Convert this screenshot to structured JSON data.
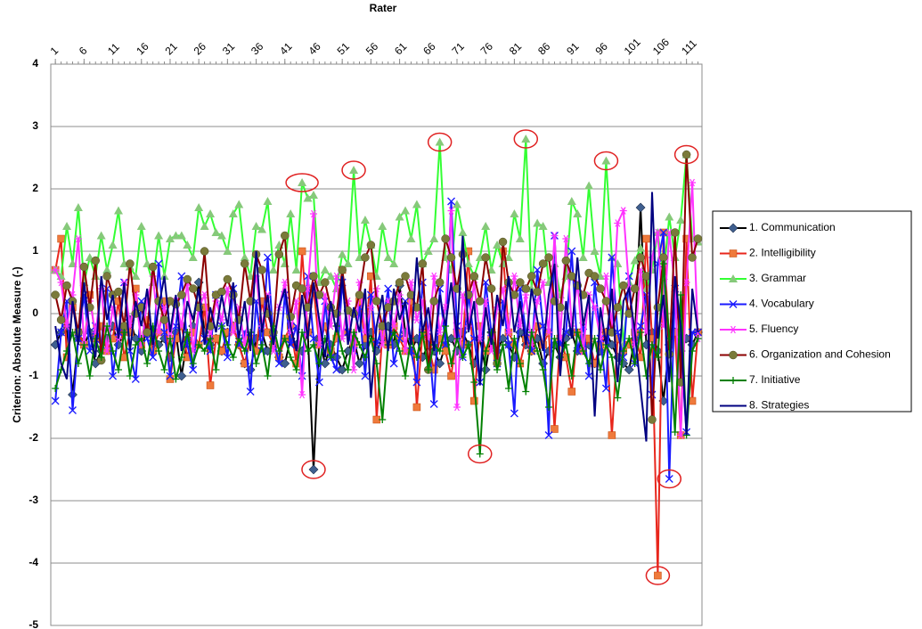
{
  "chart_data": {
    "type": "line",
    "x_label": "Rater",
    "y_label": "Criterion: Absolute Measure (-)",
    "x": [
      1,
      2,
      3,
      4,
      5,
      6,
      7,
      8,
      9,
      10,
      11,
      12,
      13,
      14,
      15,
      16,
      17,
      18,
      19,
      20,
      21,
      22,
      23,
      24,
      25,
      26,
      27,
      28,
      29,
      30,
      31,
      32,
      33,
      34,
      35,
      36,
      37,
      38,
      39,
      40,
      41,
      42,
      43,
      44,
      45,
      46,
      47,
      48,
      49,
      50,
      51,
      52,
      53,
      54,
      55,
      56,
      57,
      58,
      59,
      60,
      61,
      62,
      63,
      64,
      65,
      66,
      67,
      68,
      69,
      70,
      71,
      72,
      73,
      74,
      75,
      76,
      77,
      78,
      79,
      80,
      81,
      82,
      83,
      84,
      85,
      86,
      87,
      88,
      89,
      90,
      91,
      92,
      93,
      94,
      95,
      96,
      97,
      98,
      99,
      100,
      101,
      102,
      103,
      104,
      105,
      106,
      107,
      108,
      109,
      110,
      111,
      112,
      113
    ],
    "xlim": [
      0.2,
      113.7
    ],
    "xticks": [
      1,
      6,
      11,
      16,
      21,
      26,
      31,
      36,
      41,
      46,
      51,
      56,
      61,
      66,
      71,
      76,
      81,
      86,
      91,
      96,
      101,
      106,
      111
    ],
    "ylim": [
      -5,
      4
    ],
    "yticks": [
      -5,
      -4,
      -3,
      -2,
      -1,
      0,
      1,
      2,
      3,
      4
    ],
    "grid": true,
    "legend": "right",
    "series": [
      {
        "name": "1. Communication",
        "color": "#000000",
        "marker": "diamond",
        "marker_color": "#3f5f8f",
        "values": [
          -0.5,
          -0.3,
          -0.2,
          -1.3,
          -0.4,
          -0.5,
          -0.3,
          -0.8,
          -0.6,
          -0.4,
          -0.2,
          -0.5,
          -0.3,
          -0.1,
          -0.4,
          -0.6,
          -0.2,
          -0.3,
          -0.5,
          -0.4,
          -0.7,
          -0.3,
          -1.0,
          -0.4,
          -0.2,
          0.5,
          -0.3,
          -0.5,
          -0.4,
          -0.6,
          -0.3,
          -0.2,
          -0.5,
          -0.8,
          -0.9,
          -0.4,
          -0.3,
          -0.6,
          -0.5,
          -0.7,
          -0.8,
          -0.4,
          -0.5,
          -0.6,
          -0.3,
          -2.5,
          -0.4,
          -0.8,
          -0.5,
          -0.7,
          -0.9,
          -0.6,
          -0.4,
          -0.8,
          -0.5,
          -0.3,
          -0.6,
          -0.4,
          -0.2,
          -0.5,
          0.45,
          -0.3,
          -0.6,
          -0.4,
          -0.7,
          -0.5,
          -0.6,
          -0.8,
          -0.5,
          -0.4,
          -0.6,
          -0.3,
          -0.5,
          -0.8,
          -0.4,
          -0.9,
          -0.3,
          -0.6,
          -0.4,
          -0.5,
          -0.7,
          -0.3,
          -0.5,
          -0.6,
          -0.4,
          -0.8,
          -0.6,
          -0.5,
          -0.7,
          -0.4,
          -0.3,
          -0.6,
          -0.4,
          -0.5,
          -0.8,
          -0.6,
          -0.3,
          -0.5,
          -0.7,
          -0.8,
          -0.9,
          -0.4,
          1.7,
          -0.5,
          -0.3,
          -0.6,
          -1.4,
          -0.5,
          -0.3,
          -0.6,
          -0.4,
          -0.5,
          -0.3
        ]
      },
      {
        "name": "2. Intelligibility",
        "color": "#e8261c",
        "marker": "square",
        "marker_color": "#ef7a3c",
        "values": [
          0.7,
          1.2,
          -0.7,
          0.1,
          -0.3,
          -0.5,
          0.3,
          -0.4,
          -0.2,
          -0.6,
          -0.4,
          0.2,
          -0.7,
          -0.3,
          0.4,
          -0.5,
          -0.1,
          -0.6,
          -0.3,
          0.2,
          -1.05,
          -0.4,
          -0.2,
          -0.7,
          -0.3,
          -0.5,
          0.1,
          -1.15,
          -0.4,
          -0.6,
          -0.3,
          -0.2,
          -0.5,
          -0.8,
          -0.4,
          -0.6,
          0.2,
          -0.3,
          -0.5,
          -0.7,
          -0.4,
          -0.2,
          -0.8,
          1.0,
          -0.3,
          0.4,
          -0.5,
          -0.2,
          -0.6,
          -0.4,
          0.7,
          -0.3,
          -0.5,
          0.2,
          -0.4,
          0.6,
          -1.7,
          -0.3,
          -0.5,
          -0.2,
          -0.4,
          -0.6,
          0.2,
          -1.5,
          -0.3,
          -0.5,
          -0.9,
          -0.4,
          -0.6,
          -1.0,
          -0.3,
          -0.5,
          1.0,
          -1.4,
          -0.2,
          -0.6,
          -0.4,
          -0.7,
          1.0,
          -0.3,
          -0.5,
          -0.8,
          -0.4,
          -0.6,
          -0.2,
          -0.5,
          -0.3,
          -1.85,
          -0.4,
          -0.7,
          -1.25,
          -0.3,
          -0.6,
          -0.4,
          -0.8,
          -0.5,
          -0.3,
          -1.95,
          -0.4,
          -0.6,
          -0.5,
          -0.3,
          -0.7,
          1.2,
          -0.4,
          -4.2,
          1.3,
          -0.5,
          -0.3,
          -1.95,
          1.2,
          -1.4,
          -0.3
        ]
      },
      {
        "name": "3. Grammar",
        "color": "#33ff33",
        "marker": "triangle",
        "marker_color": "#86c97a",
        "values": [
          0.7,
          0.6,
          1.4,
          0.8,
          1.7,
          0.5,
          0.9,
          0.6,
          1.25,
          0.7,
          1.1,
          1.65,
          0.8,
          0.75,
          0.6,
          1.4,
          0.8,
          0.5,
          1.25,
          0.6,
          1.2,
          1.25,
          1.25,
          1.1,
          0.9,
          1.7,
          1.4,
          1.6,
          1.3,
          1.25,
          1.0,
          1.6,
          1.75,
          0.9,
          0.6,
          1.4,
          1.35,
          1.8,
          0.7,
          1.1,
          0.8,
          1.6,
          0.7,
          2.1,
          1.85,
          1.9,
          0.5,
          0.7,
          0.6,
          0.4,
          0.95,
          0.8,
          2.3,
          0.9,
          1.5,
          1.1,
          0.6,
          1.4,
          0.9,
          0.8,
          1.55,
          1.65,
          1.2,
          1.75,
          0.8,
          1.0,
          1.2,
          2.75,
          0.9,
          0.7,
          1.75,
          1.3,
          0.8,
          0.6,
          0.9,
          1.4,
          0.7,
          1.1,
          0.8,
          0.9,
          1.6,
          1.2,
          2.8,
          0.4,
          1.45,
          1.4,
          0.5,
          0.8,
          0.3,
          0.6,
          1.8,
          1.6,
          0.9,
          2.05,
          1.0,
          0.6,
          2.45,
          0.9,
          0.8,
          -0.5,
          0.5,
          0.85,
          1.05,
          0.4,
          0.7,
          1.3,
          0.6,
          1.55,
          0.9,
          1.5,
          2.55,
          1.2,
          1.15
        ]
      },
      {
        "name": "4. Vocabulary",
        "color": "#1a1aff",
        "marker": "x",
        "marker_color": "#1a1aff",
        "values": [
          -1.4,
          -0.3,
          0.2,
          -1.55,
          -0.4,
          0.3,
          -0.6,
          -0.2,
          -0.5,
          0.4,
          -1.0,
          -0.3,
          0.5,
          -0.6,
          -1.05,
          0.2,
          -0.4,
          -0.7,
          0.8,
          -0.3,
          -1.0,
          -0.2,
          0.6,
          -0.5,
          -0.9,
          0.1,
          -0.4,
          -0.6,
          0.3,
          -0.2,
          -0.7,
          0.4,
          -0.5,
          -0.3,
          -1.25,
          0.2,
          -0.6,
          0.9,
          -0.4,
          -0.8,
          0.3,
          -0.5,
          -0.2,
          -1.0,
          0.6,
          -0.4,
          -1.1,
          0.2,
          -0.7,
          -0.9,
          0.5,
          -0.3,
          -0.6,
          0.1,
          -1.0,
          0.3,
          -0.5,
          -0.2,
          0.4,
          -0.8,
          -0.4,
          0.2,
          -0.6,
          -1.1,
          0.5,
          -0.3,
          -1.45,
          0.4,
          -0.5,
          1.8,
          -0.2,
          -0.7,
          0.3,
          -0.4,
          -1.1,
          0.5,
          -0.3,
          -0.8,
          0.2,
          -0.5,
          -1.6,
          0.4,
          -0.3,
          -0.6,
          0.7,
          -0.2,
          -1.95,
          1.25,
          -0.5,
          -0.3,
          1.0,
          -0.6,
          -0.2,
          -1.0,
          0.5,
          -0.4,
          -1.2,
          0.9,
          -0.3,
          -0.7,
          0.6,
          -0.8,
          -0.2,
          0.3,
          -1.3,
          0.8,
          1.3,
          -2.65,
          0.4,
          -0.5,
          -1.9,
          -0.3,
          -0.3
        ]
      },
      {
        "name": "5. Fluency",
        "color": "#ff33ff",
        "marker": "asterisk",
        "marker_color": "#ff33ff",
        "values": [
          0.7,
          0.5,
          -0.2,
          0.3,
          1.2,
          -0.5,
          0.2,
          -0.3,
          0.4,
          -0.6,
          0.1,
          -0.4,
          0.5,
          -0.2,
          0.3,
          -0.5,
          0.2,
          0.6,
          -0.3,
          0.1,
          -0.4,
          0.2,
          -0.2,
          0.5,
          -0.6,
          0.1,
          0.3,
          -0.4,
          0.2,
          -0.1,
          0.4,
          -0.3,
          0.1,
          -0.5,
          0.2,
          0.6,
          -0.2,
          0.3,
          -0.6,
          0.1,
          0.5,
          -0.3,
          0.2,
          -1.3,
          0.4,
          1.6,
          -0.5,
          0.3,
          -0.2,
          0.6,
          -0.4,
          0.2,
          -0.9,
          0.5,
          -0.3,
          0.1,
          0.4,
          -0.5,
          0.2,
          -0.2,
          0.3,
          -0.6,
          0.5,
          -0.1,
          0.2,
          -0.4,
          0.6,
          -0.3,
          0.1,
          1.65,
          -1.5,
          0.3,
          -0.2,
          0.5,
          -0.4,
          0.2,
          -0.6,
          0.1,
          0.4,
          -0.3,
          0.6,
          -0.2,
          0.3,
          -0.5,
          0.2,
          0.5,
          -0.3,
          1.25,
          -0.4,
          1.2,
          -0.2,
          0.5,
          -0.6,
          0.3,
          0.1,
          -0.4,
          0.6,
          -0.2,
          1.45,
          1.65,
          0.4,
          -0.5,
          0.7,
          -0.3,
          0.9,
          1.3,
          -0.2,
          1.3,
          0.4,
          -1.95,
          0.5,
          2.1,
          -0.4
        ]
      },
      {
        "name": "6. Organization and Cohesion",
        "color": "#8b0000",
        "marker": "circle",
        "marker_color": "#7a7a3a",
        "values": [
          0.3,
          -0.1,
          0.45,
          0.2,
          -0.3,
          0.75,
          0.1,
          0.85,
          -0.75,
          0.6,
          0.3,
          0.35,
          -0.2,
          0.8,
          0.0,
          0.1,
          -0.3,
          0.75,
          0.2,
          -0.1,
          0.2,
          0.15,
          0.3,
          0.55,
          0.4,
          0.1,
          1.0,
          -0.2,
          0.3,
          0.35,
          0.55,
          0.3,
          -0.1,
          0.8,
          0.2,
          0.95,
          0.7,
          0.0,
          -0.3,
          0.95,
          1.25,
          -0.05,
          0.45,
          0.4,
          0.1,
          0.6,
          0.3,
          0.5,
          0.1,
          0.0,
          0.7,
          0.05,
          0.0,
          0.3,
          0.9,
          1.1,
          0.2,
          -0.2,
          0.1,
          0.2,
          0.5,
          0.6,
          0.3,
          0.1,
          0.8,
          -0.9,
          0.2,
          0.5,
          1.2,
          0.9,
          0.4,
          0.95,
          0.3,
          0.6,
          0.2,
          0.9,
          0.4,
          -0.8,
          1.15,
          0.5,
          0.3,
          0.5,
          0.4,
          0.6,
          0.35,
          0.8,
          0.9,
          0.2,
          0.1,
          0.85,
          0.6,
          0.45,
          0.3,
          0.65,
          0.6,
          0.4,
          0.2,
          -0.3,
          0.1,
          0.45,
          0.0,
          0.4,
          0.9,
          0.6,
          -1.7,
          0.1,
          0.9,
          -0.65,
          1.3,
          -1.1,
          2.55,
          0.9,
          1.2
        ]
      },
      {
        "name": "7. Initiative",
        "color": "#008000",
        "marker": "plus",
        "marker_color": "#008000",
        "values": [
          -1.2,
          -0.9,
          -0.6,
          -0.3,
          -0.8,
          -0.5,
          -1.0,
          -0.4,
          -0.7,
          -0.2,
          -0.6,
          -0.9,
          -0.3,
          -1.0,
          -0.5,
          -0.4,
          -0.8,
          -0.2,
          -0.6,
          -0.9,
          -0.4,
          -1.05,
          -0.7,
          -0.3,
          -0.8,
          -0.5,
          -0.6,
          -0.4,
          -0.9,
          -0.2,
          -0.5,
          -0.7,
          -0.4,
          -0.6,
          -0.3,
          -0.8,
          -0.5,
          -1.0,
          -0.2,
          -0.6,
          -0.4,
          -0.7,
          -0.9,
          -0.3,
          -0.6,
          -0.5,
          -0.8,
          -0.4,
          -0.7,
          -0.2,
          -0.6,
          -0.9,
          -0.3,
          -0.5,
          -0.7,
          -0.4,
          -0.8,
          -1.7,
          -0.5,
          -0.3,
          -0.6,
          -1.0,
          -0.4,
          -0.7,
          -0.3,
          -0.9,
          -0.5,
          -0.6,
          -0.2,
          -0.8,
          -0.4,
          -0.7,
          -0.5,
          -1.1,
          -2.25,
          -0.6,
          -0.3,
          -0.9,
          -0.5,
          -1.2,
          -0.4,
          -0.8,
          -1.25,
          -0.3,
          -0.6,
          -0.9,
          -1.5,
          -0.4,
          -0.7,
          -0.5,
          -1.0,
          -0.3,
          -0.6,
          -0.8,
          -0.4,
          -0.9,
          -0.5,
          -0.7,
          -1.35,
          -0.6,
          -0.4,
          -0.8,
          -0.3,
          -1.0,
          -0.5,
          -0.7,
          0.8,
          -0.4,
          -1.9,
          0.3,
          -1.95,
          -0.6,
          -0.4
        ]
      },
      {
        "name": "8. Strategies",
        "color": "#000080",
        "marker": "none",
        "marker_color": "#000080",
        "values": [
          -0.2,
          -0.8,
          -1.05,
          0.2,
          -0.5,
          0.5,
          -0.3,
          -0.7,
          0.6,
          -0.1,
          0.3,
          -0.4,
          0.5,
          -0.6,
          0.2,
          -0.2,
          0.4,
          -0.5,
          0.1,
          0.6,
          -0.3,
          0.3,
          -0.6,
          0.2,
          -0.1,
          0.4,
          -0.5,
          0.1,
          -0.3,
          0.3,
          -0.2,
          0.5,
          -0.4,
          0.2,
          -0.6,
          1.0,
          -0.3,
          0.3,
          -0.5,
          0.1,
          0.4,
          -0.2,
          -0.6,
          0.3,
          -0.4,
          0.5,
          -0.1,
          -0.7,
          0.2,
          -0.3,
          0.6,
          -0.5,
          0.1,
          -0.3,
          0.4,
          -1.35,
          -0.2,
          0.3,
          -0.6,
          0.4,
          -0.1,
          0.2,
          -0.5,
          0.9,
          -0.3,
          0.1,
          -0.6,
          0.3,
          -0.2,
          0.5,
          -0.4,
          1.25,
          -0.3,
          0.2,
          -1.15,
          0.1,
          -0.5,
          0.3,
          -0.2,
          0.6,
          -0.3,
          0.2,
          -0.5,
          0.4,
          -0.1,
          -0.6,
          0.3,
          0.8,
          -1.0,
          0.2,
          -0.4,
          0.9,
          -0.2,
          0.3,
          -1.65,
          0.1,
          -0.5,
          0.4,
          -1.1,
          0.2,
          0.4,
          -0.3,
          -1.2,
          -2.05,
          1.95,
          -0.4,
          0.3,
          -1.1,
          0.6,
          -0.2,
          -1.95,
          0.4,
          -0.3
        ]
      }
    ]
  }
}
